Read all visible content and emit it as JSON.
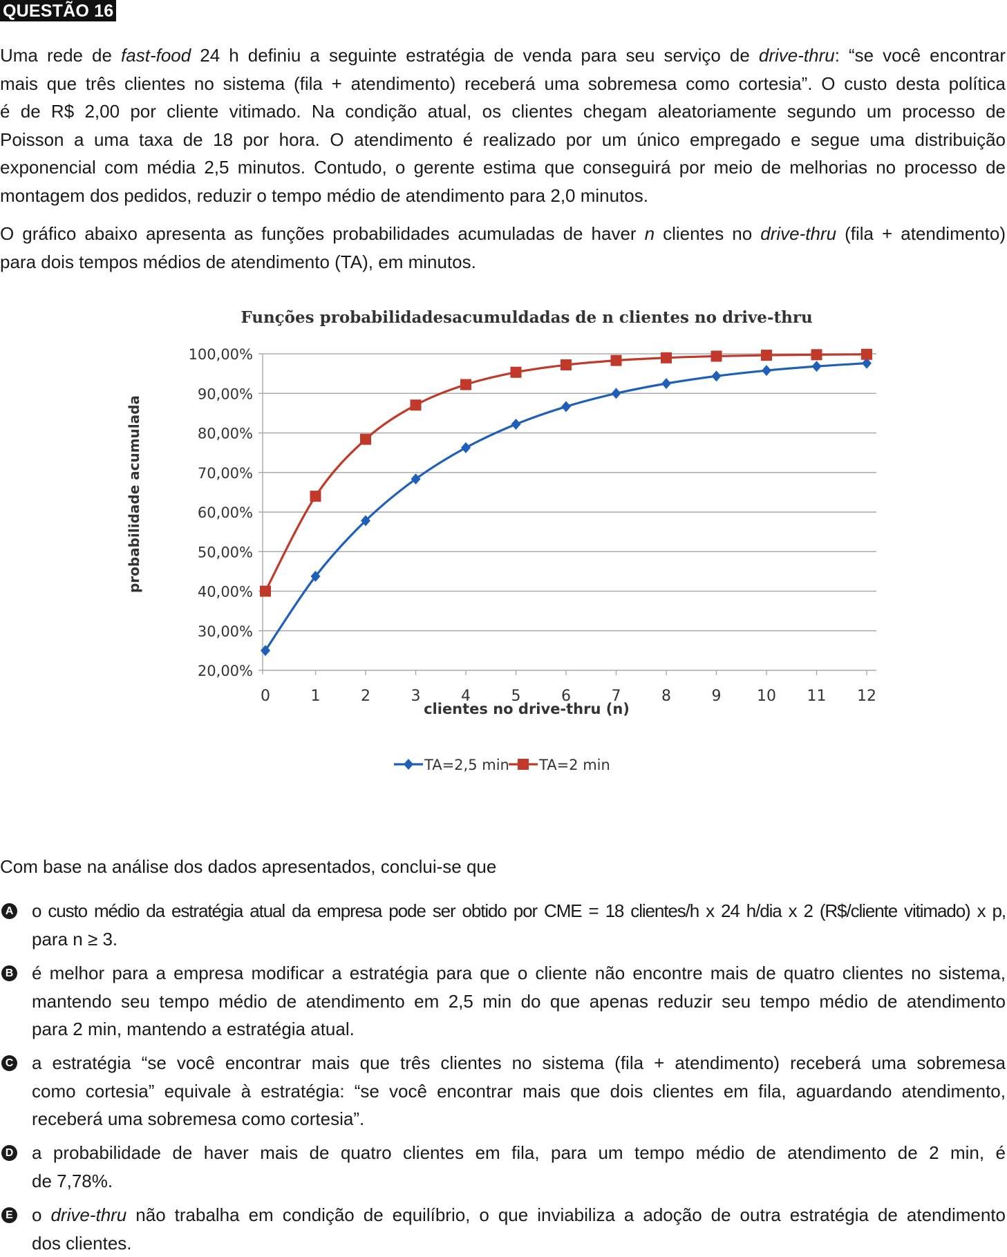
{
  "header": {
    "label": "QUESTÃO 16"
  },
  "intro": {
    "lines": [
      [
        "Uma rede de ",
        "fast-food",
        " 24 h definiu a seguinte estratégia de venda para seu serviço de ",
        "drive-thru",
        ": “se você encontrar"
      ],
      [
        "mais que três clientes no sistema (fila + atendimento) receberá uma sobremesa como cortesia”. O custo desta política"
      ],
      [
        "é de R$ 2,00 por cliente vitimado. Na condição atual, os clientes chegam aleatoriamente segundo um processo de"
      ],
      [
        "Poisson a uma taxa de 18 por hora. O atendimento é realizado por um único empregado e segue uma distribuição"
      ],
      [
        "exponencial com média 2,5 minutos. Contudo, o gerente estima que conseguirá por meio de melhorias no processo de"
      ],
      [
        "montagem dos pedidos, reduzir o tempo médio de atendimento para 2,0 minutos."
      ]
    ]
  },
  "chart_intro": {
    "line1_a": "O gráfico abaixo apresenta as funções probabilidades acumuladas de haver ",
    "line1_n": "n",
    "line1_b": " clientes no ",
    "line1_dt": "drive-thru",
    "line1_c": " (fila + atendimento)",
    "line2": "para dois tempos médios de atendimento (TA), em minutos."
  },
  "chart_data": {
    "type": "line",
    "title": "Funções probabilidadesacumuldadas de n clientes no drive-thru",
    "xlabel": "clientes no drive-thru (n)",
    "ylabel": "probabilidade acumulada",
    "x": [
      0,
      1,
      2,
      3,
      4,
      5,
      6,
      7,
      8,
      9,
      10,
      11,
      12
    ],
    "ylim": [
      20,
      100
    ],
    "yticks": [
      "100,00%",
      "90,00%",
      "80,00%",
      "70,00%",
      "60,00%",
      "50,00%",
      "40,00%",
      "30,00%",
      "20,00%"
    ],
    "ytick_values": [
      100,
      90,
      80,
      70,
      60,
      50,
      40,
      30,
      20
    ],
    "grid": true,
    "legend_position": "bottom",
    "series": [
      {
        "name": "TA=2,5 min",
        "color": "#1f5fb8",
        "marker": "diamond",
        "values": [
          25.0,
          43.75,
          57.81,
          68.36,
          76.27,
          82.2,
          86.65,
          89.99,
          92.49,
          94.37,
          95.78,
          96.83,
          97.62
        ]
      },
      {
        "name": "TA=2 min",
        "color": "#c0392b",
        "marker": "square",
        "values": [
          40.0,
          64.0,
          78.4,
          87.04,
          92.22,
          95.33,
          97.2,
          98.32,
          98.99,
          99.4,
          99.64,
          99.78,
          99.87
        ]
      }
    ]
  },
  "conclusion": {
    "text": "Com base na análise dos dados apresentados, conclui-se que"
  },
  "options": [
    {
      "letter": "A",
      "lines": [
        "o custo médio da estratégia atual da empresa pode ser obtido por CME = 18 clientes/h x 24 h/dia x 2 (R$/cliente vitimado) x p,",
        "para n ≥ 3."
      ]
    },
    {
      "letter": "B",
      "lines": [
        "é melhor para a empresa modificar a estratégia para que o cliente não encontre mais de quatro clientes no sistema,",
        "mantendo seu tempo médio de atendimento em 2,5 min do que apenas reduzir seu tempo médio de atendimento",
        "para 2 min, mantendo a estratégia atual."
      ]
    },
    {
      "letter": "C",
      "lines": [
        "a estratégia “se você encontrar mais que três clientes no sistema (fila + atendimento) receberá uma sobremesa",
        "como cortesia” equivale à estratégia: “se você encontrar mais que dois clientes em fila, aguardando atendimento,",
        "receberá uma sobremesa como cortesia”."
      ]
    },
    {
      "letter": "D",
      "lines": [
        "a probabilidade de haver mais de quatro clientes em fila, para um tempo médio de atendimento de 2 min, é",
        "de 7,78%."
      ]
    },
    {
      "letter": "E",
      "lines_e1": [
        "o ",
        "drive-thru",
        " não trabalha em condição de equilíbrio, o que inviabiliza a adoção de outra estratégia de atendimento"
      ],
      "lines": [
        "dos clientes."
      ]
    }
  ]
}
